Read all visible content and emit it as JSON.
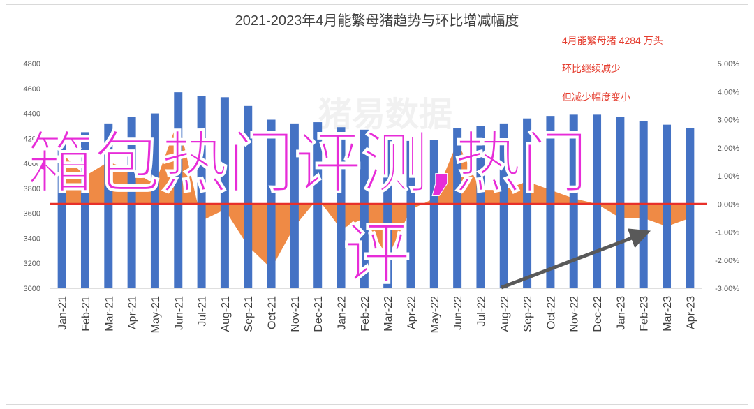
{
  "chart_data": {
    "type": "bar",
    "title": "2021-2023年4月能繁母猪趋势与环比增减幅度",
    "categories": [
      "Jan-21",
      "Feb-21",
      "Mar-21",
      "Apr-21",
      "May-21",
      "Jun-21",
      "Jul-21",
      "Aug-21",
      "Sep-21",
      "Oct-21",
      "Nov-21",
      "Dec-21",
      "Jan-22",
      "Feb-22",
      "Mar-22",
      "Apr-22",
      "May-22",
      "Jun-22",
      "Jul-22",
      "Aug-22",
      "Sep-22",
      "Oct-22",
      "Nov-22",
      "Dec-22",
      "Jan-23",
      "Feb-23",
      "Mar-23",
      "Apr-23"
    ],
    "series": [
      {
        "type": "bar",
        "axis": "left",
        "color": "#4472c4",
        "values": [
          4210,
          4250,
          4320,
          4370,
          4400,
          4570,
          4540,
          4530,
          4460,
          4350,
          4320,
          4330,
          4290,
          4270,
          4190,
          4180,
          4190,
          4280,
          4300,
          4320,
          4360,
          4380,
          4390,
          4390,
          4370,
          4340,
          4310,
          4284
        ]
      },
      {
        "type": "area",
        "axis": "right",
        "color": "#ed7d31",
        "values": [
          1.8,
          1.0,
          1.5,
          1.2,
          0.7,
          3.0,
          -0.6,
          -0.2,
          -1.5,
          -2.3,
          -0.8,
          0.2,
          -0.9,
          -0.5,
          -1.9,
          -0.2,
          0.2,
          2.2,
          0.5,
          0.5,
          0.8,
          0.5,
          0.2,
          0.0,
          -0.5,
          -0.5,
          -0.8,
          -0.5
        ]
      }
    ],
    "ylim_left": [
      3000,
      4800
    ],
    "yticks_left": [
      "4800",
      "4600",
      "4400",
      "4200",
      "4000",
      "3800",
      "3600",
      "3400",
      "3200",
      "3000"
    ],
    "ylim_right": [
      -3.0,
      5.0
    ],
    "yticks_right": [
      "5.00%",
      "4.00%",
      "3.00%",
      "2.00%",
      "1.00%",
      "0.00%",
      "-1.00%",
      "-2.00%",
      "-3.00%"
    ],
    "zero_line_color": "#e8302a",
    "trend_arrow_color": "#595959",
    "annotations": [
      "4月能繁母猪 4284 万头",
      "环比继续减少",
      "但减少幅度变小"
    ],
    "watermark": "猪易数据",
    "overlay_text": [
      "箱包热门评测,热门",
      "评"
    ]
  }
}
